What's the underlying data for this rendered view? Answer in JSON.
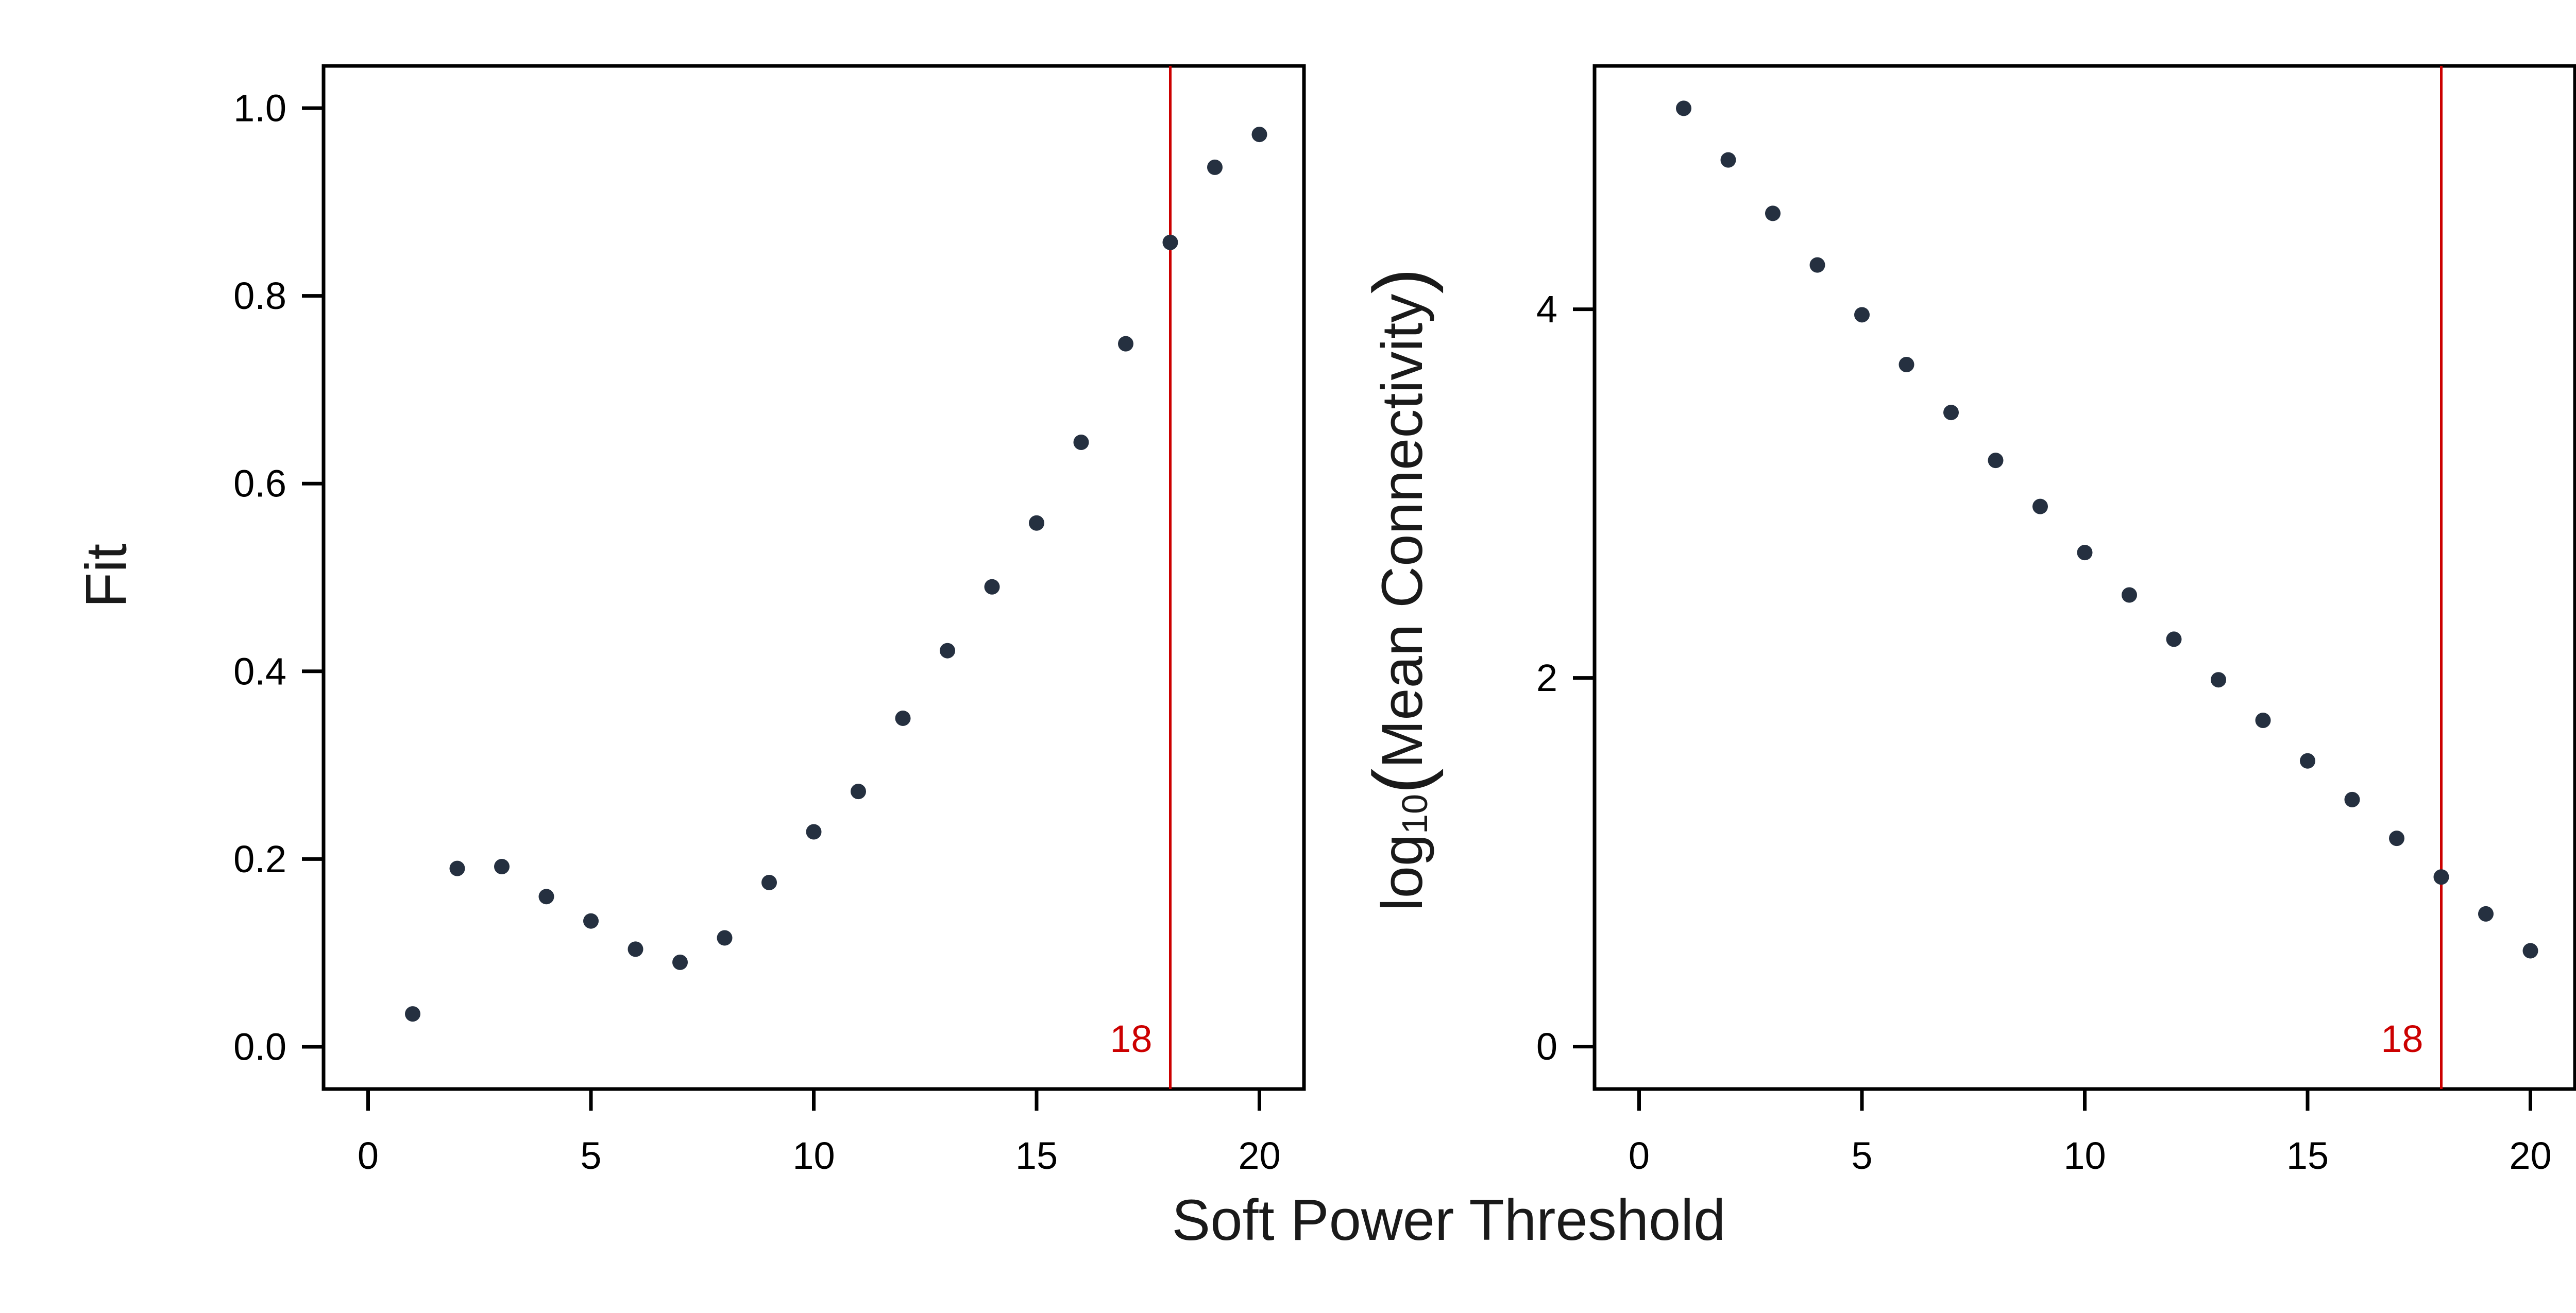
{
  "figure": {
    "shared_xlabel": "Soft Power Threshold",
    "point_color": "#253040",
    "threshold_color": "#cc0000"
  },
  "chart_data": [
    {
      "type": "scatter",
      "ylabel": "Fit",
      "xlim": [
        -1,
        21
      ],
      "ylim": [
        -0.045,
        1.045
      ],
      "x_ticks": [
        0,
        5,
        10,
        15,
        20
      ],
      "x_tick_labels": [
        "0",
        "5",
        "10",
        "15",
        "20"
      ],
      "y_ticks": [
        0.0,
        0.2,
        0.4,
        0.6,
        0.8,
        1.0
      ],
      "y_tick_labels": [
        "0.0",
        "0.2",
        "0.4",
        "0.6",
        "0.8",
        "1.0"
      ],
      "x": [
        1,
        2,
        3,
        4,
        5,
        6,
        7,
        8,
        9,
        10,
        11,
        12,
        13,
        14,
        15,
        16,
        17,
        18,
        19,
        20
      ],
      "y": [
        0.035,
        0.19,
        0.192,
        0.16,
        0.134,
        0.104,
        0.09,
        0.116,
        0.175,
        0.229,
        0.272,
        0.35,
        0.422,
        0.49,
        0.558,
        0.644,
        0.749,
        0.857,
        0.937,
        0.972
      ],
      "threshold": {
        "x": 18,
        "label": "18"
      },
      "grid": false,
      "legend": "none"
    },
    {
      "type": "scatter",
      "ylabel_prefix": "log",
      "ylabel_subscript": "10",
      "ylabel_open": "(",
      "ylabel_main": "Mean Connectivity",
      "ylabel_close": ")",
      "xlim": [
        -1,
        21
      ],
      "ylim": [
        -0.23,
        5.32
      ],
      "x_ticks": [
        0,
        5,
        10,
        15,
        20
      ],
      "x_tick_labels": [
        "0",
        "5",
        "10",
        "15",
        "20"
      ],
      "y_ticks": [
        0,
        2,
        4
      ],
      "y_tick_labels": [
        "0",
        "2",
        "4"
      ],
      "x": [
        1,
        2,
        3,
        4,
        5,
        6,
        7,
        8,
        9,
        10,
        11,
        12,
        13,
        14,
        15,
        16,
        17,
        18,
        19,
        20
      ],
      "y": [
        5.09,
        4.81,
        4.52,
        4.24,
        3.97,
        3.7,
        3.44,
        3.18,
        2.93,
        2.68,
        2.45,
        2.21,
        1.99,
        1.77,
        1.55,
        1.34,
        1.13,
        0.92,
        0.72,
        0.52
      ],
      "threshold": {
        "x": 18,
        "label": "18"
      },
      "grid": false,
      "legend": "none"
    }
  ]
}
